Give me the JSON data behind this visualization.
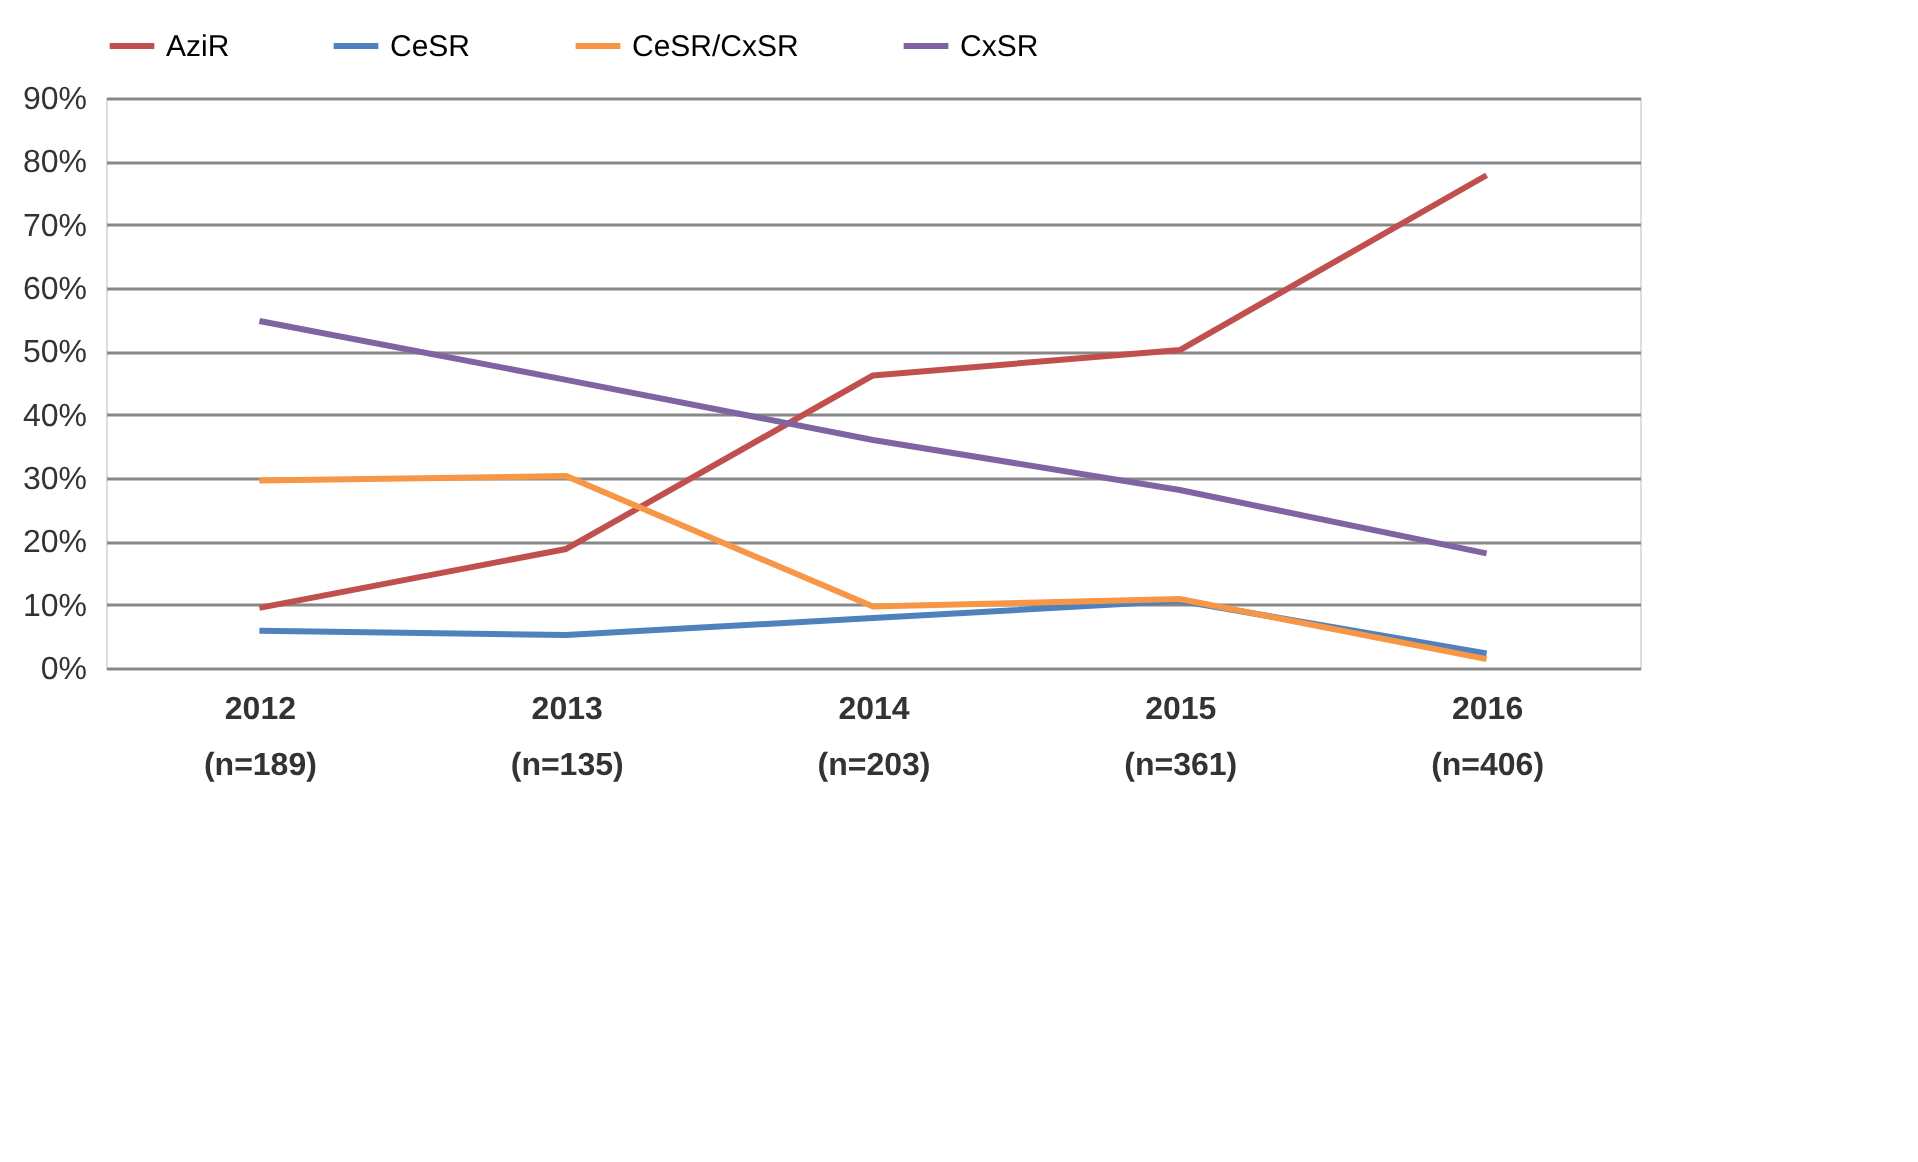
{
  "chart_data": {
    "type": "line",
    "categories": [
      "2012\n(n=189)",
      "2013\n(n=135)",
      "2014\n(n=203)",
      "2015\n(n=361)",
      "2016\n(n=406)"
    ],
    "series": [
      {
        "name": "AziR",
        "color": "#c0504d",
        "values": [
          9.5,
          18.8,
          46.2,
          50.2,
          77.8
        ]
      },
      {
        "name": "CeSR",
        "color": "#4f81bd",
        "values": [
          5.9,
          5.2,
          7.9,
          10.6,
          2.3
        ]
      },
      {
        "name": "CeSR/CxSR",
        "color": "#f79646",
        "values": [
          29.6,
          30.3,
          9.7,
          10.9,
          1.4
        ]
      },
      {
        "name": "CxSR",
        "color": "#8064a2",
        "values": [
          54.8,
          45.5,
          36.0,
          28.1,
          18.1
        ]
      }
    ],
    "ylim": [
      0,
      90
    ],
    "yticks": [
      {
        "value": 0,
        "label": "0%"
      },
      {
        "value": 10,
        "label": "10%"
      },
      {
        "value": 20,
        "label": "20%"
      },
      {
        "value": 30,
        "label": "30%"
      },
      {
        "value": 40,
        "label": "40%"
      },
      {
        "value": 50,
        "label": "50%"
      },
      {
        "value": 60,
        "label": "60%"
      },
      {
        "value": 70,
        "label": "70%"
      },
      {
        "value": 80,
        "label": "80%"
      },
      {
        "value": 90,
        "label": "90%"
      }
    ],
    "grid": "y",
    "legend": "top",
    "marker": "none",
    "line_style": "solid"
  }
}
